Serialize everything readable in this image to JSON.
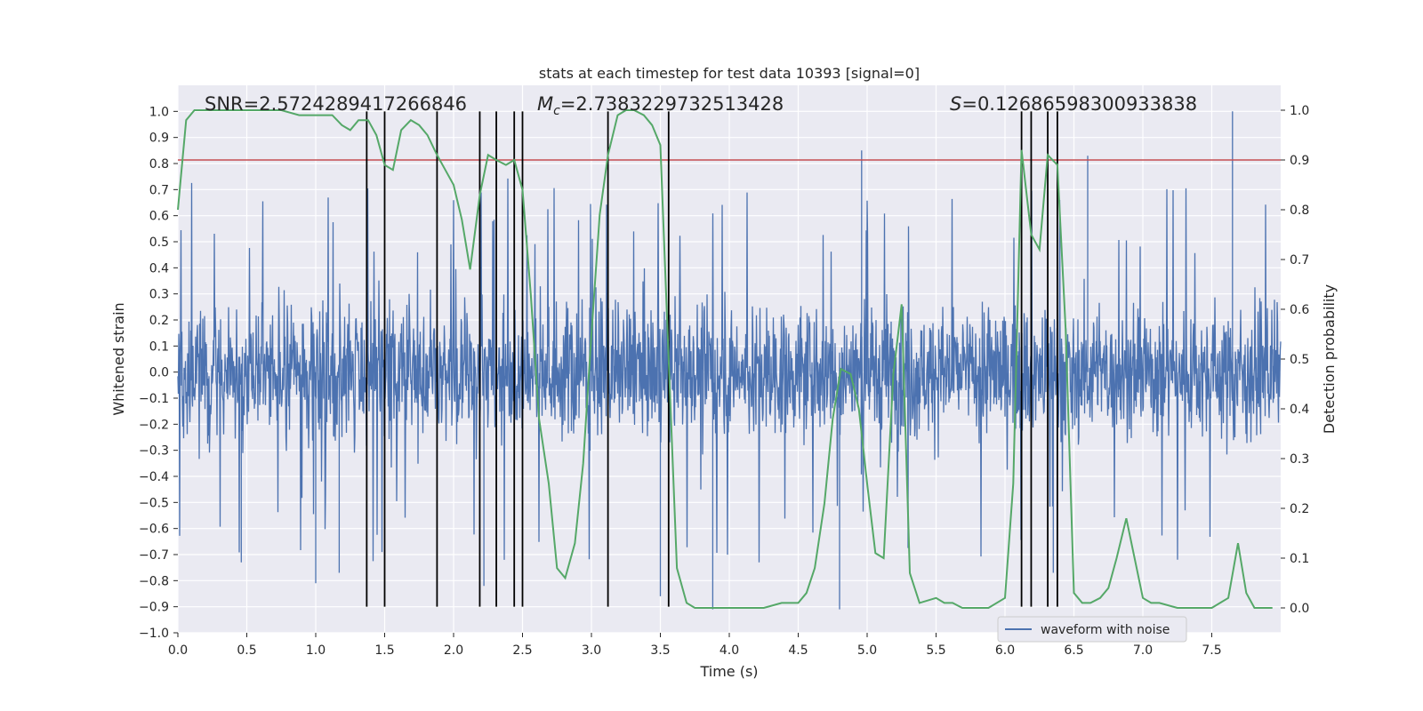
{
  "chart_data": {
    "type": "line",
    "title": "stats at each timestep for test data 10393 [signal=0]",
    "xlabel": "Time (s)",
    "ylabel_left": "Whitened strain",
    "ylabel_right": "Detection probability",
    "xlim": [
      0.0,
      8.0
    ],
    "ylim_left": [
      -1.0,
      1.1
    ],
    "ylim_right": [
      -0.05,
      1.05
    ],
    "x_ticks": [
      "0.0",
      "0.5",
      "1.0",
      "1.5",
      "2.0",
      "2.5",
      "3.0",
      "3.5",
      "4.0",
      "4.5",
      "5.0",
      "5.5",
      "6.0",
      "6.5",
      "7.0",
      "7.5"
    ],
    "y_ticks_left": [
      "1.0",
      "0.9",
      "0.8",
      "0.7",
      "0.6",
      "0.5",
      "0.4",
      "0.3",
      "0.2",
      "0.1",
      "0.0",
      "−0.1",
      "−0.2",
      "−0.3",
      "−0.4",
      "−0.5",
      "−0.6",
      "−0.7",
      "−0.8",
      "−0.9",
      "−1.0"
    ],
    "y_ticks_right": [
      "1.0",
      "0.9",
      "0.8",
      "0.7",
      "0.6",
      "0.5",
      "0.4",
      "0.3",
      "0.2",
      "0.1",
      "0.0"
    ],
    "grid": true,
    "legend": {
      "placement": "lower-right",
      "entries": [
        "waveform with noise"
      ]
    },
    "annotations": {
      "snr": "SNR=2.5724289417266846",
      "mc_symbol": "M",
      "mc_sub": "c",
      "mc_value": "=2.7383229732513428",
      "s_symbol": "S",
      "s_value": "=0.12686598300933838"
    },
    "threshold": {
      "value": 0.9,
      "axis": "right",
      "color": "#c44e52"
    },
    "vertical_lines": [
      1.37,
      1.5,
      1.88,
      2.19,
      2.31,
      2.44,
      2.5,
      3.12,
      3.56,
      6.12,
      6.19,
      6.31,
      6.38
    ],
    "vertical_line_range": [
      -0.9,
      1.0
    ],
    "series": [
      {
        "name": "waveform with noise",
        "color": "#4c72b0",
        "noise_envelope": {
          "typical_abs": 0.35,
          "min": -0.91,
          "max": 1.0
        },
        "spikes": [
          {
            "x": 1.0,
            "y": -0.81
          },
          {
            "x": 1.17,
            "y": -0.77
          },
          {
            "x": 0.46,
            "y": -0.73
          },
          {
            "x": 2.22,
            "y": -0.82
          },
          {
            "x": 3.88,
            "y": -0.91
          },
          {
            "x": 4.8,
            "y": -0.91
          },
          {
            "x": 4.96,
            "y": 0.85
          },
          {
            "x": 6.6,
            "y": 0.83
          },
          {
            "x": 7.65,
            "y": 1.0
          },
          {
            "x": 6.35,
            "y": -0.77
          },
          {
            "x": 3.5,
            "y": -0.86
          }
        ]
      },
      {
        "name": "",
        "color": "#55a868",
        "axis": "right",
        "x": [
          0.0,
          0.06,
          0.12,
          0.25,
          0.5,
          0.75,
          0.88,
          1.0,
          1.12,
          1.19,
          1.25,
          1.31,
          1.38,
          1.44,
          1.5,
          1.56,
          1.62,
          1.69,
          1.75,
          1.81,
          1.88,
          1.94,
          2.0,
          2.06,
          2.12,
          2.19,
          2.25,
          2.31,
          2.38,
          2.44,
          2.5,
          2.56,
          2.62,
          2.69,
          2.75,
          2.81,
          2.88,
          2.94,
          3.0,
          3.06,
          3.12,
          3.19,
          3.25,
          3.31,
          3.38,
          3.44,
          3.5,
          3.56,
          3.62,
          3.69,
          3.75,
          3.81,
          3.88,
          4.0,
          4.12,
          4.25,
          4.38,
          4.5,
          4.56,
          4.62,
          4.69,
          4.75,
          4.81,
          4.88,
          4.94,
          5.0,
          5.06,
          5.12,
          5.19,
          5.25,
          5.31,
          5.38,
          5.5,
          5.56,
          5.62,
          5.69,
          5.75,
          5.88,
          6.0,
          6.06,
          6.12,
          6.19,
          6.25,
          6.31,
          6.38,
          6.44,
          6.5,
          6.56,
          6.62,
          6.69,
          6.75,
          6.81,
          6.88,
          6.94,
          7.0,
          7.06,
          7.12,
          7.25,
          7.38,
          7.5,
          7.56,
          7.62,
          7.69,
          7.75,
          7.81,
          7.94
        ],
        "y": [
          0.8,
          0.98,
          1.0,
          1.0,
          1.0,
          1.0,
          0.99,
          0.99,
          0.99,
          0.97,
          0.96,
          0.98,
          0.98,
          0.95,
          0.89,
          0.88,
          0.96,
          0.98,
          0.97,
          0.95,
          0.91,
          0.88,
          0.85,
          0.78,
          0.68,
          0.83,
          0.91,
          0.9,
          0.89,
          0.9,
          0.84,
          0.63,
          0.38,
          0.25,
          0.08,
          0.06,
          0.13,
          0.29,
          0.55,
          0.79,
          0.91,
          0.99,
          1.0,
          1.0,
          0.99,
          0.97,
          0.93,
          0.5,
          0.08,
          0.01,
          0.0,
          0.0,
          0.0,
          0.0,
          0.0,
          0.0,
          0.01,
          0.01,
          0.03,
          0.08,
          0.21,
          0.38,
          0.48,
          0.47,
          0.4,
          0.25,
          0.11,
          0.1,
          0.47,
          0.61,
          0.07,
          0.01,
          0.02,
          0.01,
          0.01,
          0.0,
          0.0,
          0.0,
          0.02,
          0.25,
          0.92,
          0.75,
          0.72,
          0.91,
          0.89,
          0.56,
          0.03,
          0.01,
          0.01,
          0.02,
          0.04,
          0.1,
          0.18,
          0.1,
          0.02,
          0.01,
          0.01,
          0.0,
          0.0,
          0.0,
          0.01,
          0.02,
          0.13,
          0.03,
          0.0,
          0.0
        ]
      }
    ]
  }
}
